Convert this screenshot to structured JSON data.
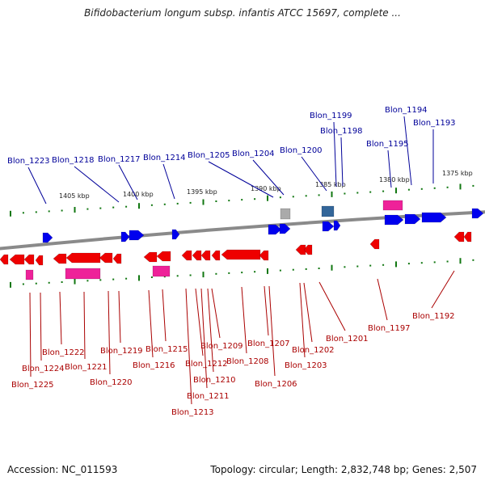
{
  "title": "Bifidobacterium longum subsp. infantis ATCC 15697, complete ...",
  "footer": {
    "accession": "Accession: NC_011593",
    "summary": "Topology: circular; Length: 2,832,748 bp; Genes: 2,507"
  },
  "colors": {
    "forward_strand": "#0000ee",
    "reverse_strand": "#ee0000",
    "forward_label": "#000099",
    "reverse_label": "#aa0000",
    "rna": "#ee2299",
    "pseudo": "#aaaaaa",
    "other": "#336699",
    "tick": "#117711",
    "backbone": "#8a8a8a"
  },
  "scale_labels": [
    "1405 kbp",
    "1400 kbp",
    "1395 kbp",
    "1390 kbp",
    "1385 kbp",
    "1380 kbp",
    "1375 kbp"
  ],
  "forward_genes": [
    "Blon_1223",
    "Blon_1218",
    "Blon_1217",
    "Blon_1214",
    "Blon_1205",
    "Blon_1204",
    "Blon_1200",
    "Blon_1199",
    "Blon_1198",
    "Blon_1195",
    "Blon_1194",
    "Blon_1193"
  ],
  "reverse_genes": [
    "Blon_1225",
    "Blon_1224",
    "Blon_1222",
    "Blon_1221",
    "Blon_1220",
    "Blon_1219",
    "Blon_1216",
    "Blon_1215",
    "Blon_1213",
    "Blon_1212",
    "Blon_1211",
    "Blon_1210",
    "Blon_1209",
    "Blon_1208",
    "Blon_1207",
    "Blon_1206",
    "Blon_1203",
    "Blon_1202",
    "Blon_1201",
    "Blon_1197",
    "Blon_1192"
  ]
}
